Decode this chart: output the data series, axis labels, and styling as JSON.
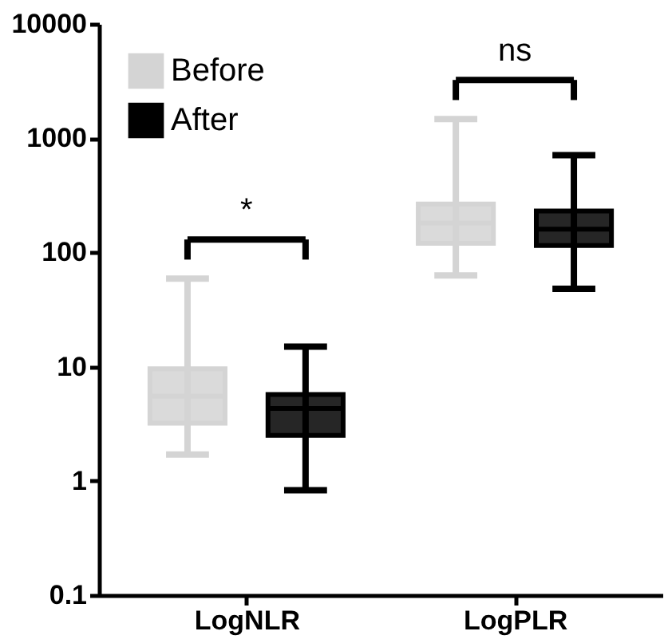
{
  "chart_data": {
    "type": "box",
    "categories": [
      "LogNLR",
      "LogPLR"
    ],
    "series": [
      {
        "name": "Before",
        "color": "#d4d4d4",
        "boxes": [
          {
            "low": 1.7,
            "q1": 3.2,
            "median": 5.5,
            "q3": 9.6,
            "high": 59
          },
          {
            "low": 63,
            "q1": 120,
            "median": 180,
            "q3": 265,
            "high": 1470
          }
        ]
      },
      {
        "name": "After",
        "color": "#000000",
        "boxes": [
          {
            "low": 0.83,
            "q1": 2.5,
            "median": 4.3,
            "q3": 5.7,
            "high": 15
          },
          {
            "low": 48,
            "q1": 115,
            "median": 160,
            "q3": 230,
            "high": 710
          }
        ]
      }
    ],
    "log": true,
    "ylim": [
      0.1,
      10000
    ],
    "yticks": [
      0.1,
      1,
      10,
      100,
      1000,
      10000
    ],
    "annotations": [
      "*",
      "ns"
    ],
    "legend": "top left",
    "grid": false
  }
}
